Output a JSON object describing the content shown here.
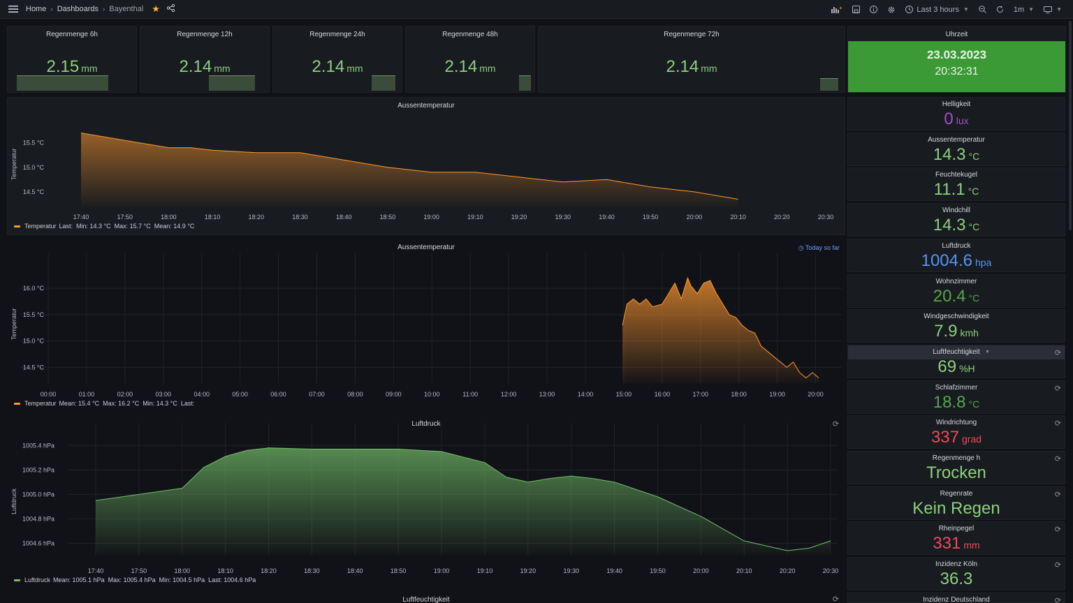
{
  "nav": {
    "home": "Home",
    "dashboards": "Dashboards",
    "current": "Bayenthal",
    "time_range": "Last 3 hours",
    "refresh_interval": "1m"
  },
  "rain_panels": [
    {
      "title": "Regenmenge 6h",
      "value": "2.15",
      "unit": "mm"
    },
    {
      "title": "Regenmenge 12h",
      "value": "2.14",
      "unit": "mm"
    },
    {
      "title": "Regenmenge 24h",
      "value": "2.14",
      "unit": "mm"
    },
    {
      "title": "Regenmenge 48h",
      "value": "2.14",
      "unit": "mm"
    },
    {
      "title": "Regenmenge 72h",
      "value": "2.14",
      "unit": "mm"
    }
  ],
  "clock": {
    "title": "Uhrzeit",
    "date": "23.03.2023",
    "time": "20:32:31"
  },
  "right_stats": [
    {
      "title": "Helligkeit",
      "value": "0",
      "unit": "lux",
      "color": "#a352cc"
    },
    {
      "title": "Aussentemperatur",
      "value": "14.3",
      "unit": "°C",
      "color": "#8cd17c"
    },
    {
      "title": "Feuchtekugel",
      "value": "11.1",
      "unit": "°C",
      "color": "#8cd17c"
    },
    {
      "title": "Windchill",
      "value": "14.3",
      "unit": "°C",
      "color": "#8cd17c"
    },
    {
      "title": "Luftdruck",
      "value": "1004.6",
      "unit": "hpa",
      "color": "#5794f2"
    },
    {
      "title": "Wohnzimmer",
      "value": "20.4",
      "unit": "°C",
      "color": "#56a64b"
    },
    {
      "title": "Windgeschwindigkeit",
      "value": "7.9",
      "unit": "kmh",
      "color": "#8cd17c"
    },
    {
      "title": "Luftfeuchtigkeit",
      "value": "69",
      "unit": "%H",
      "color": "#8cd17c"
    },
    {
      "title": "Schlafzimmer",
      "value": "18.8",
      "unit": "°C",
      "color": "#56a64b"
    },
    {
      "title": "Windrichtung",
      "value": "337",
      "unit": "grad",
      "color": "#f2495c"
    },
    {
      "title": "Regenmenge h",
      "value": "Trocken",
      "unit": "",
      "color": "#8cd17c"
    },
    {
      "title": "Regenrate",
      "value": "Kein Regen",
      "unit": "",
      "color": "#8cd17c"
    },
    {
      "title": "Rheinpegel",
      "value": "331",
      "unit": "mm",
      "color": "#f2495c"
    },
    {
      "title": "Inzidenz Köln",
      "value": "36.3",
      "unit": "",
      "color": "#8cd17c"
    },
    {
      "title": "Inzidenz Deutschland",
      "value": "",
      "unit": "",
      "color": "#8cd17c"
    }
  ],
  "chart_data": [
    {
      "type": "area",
      "title": "Aussentemperatur",
      "ylabel": "Temperatur",
      "color": "#ff9830",
      "x_ticks": [
        "17:40",
        "17:50",
        "18:00",
        "18:10",
        "18:20",
        "18:30",
        "18:40",
        "18:50",
        "19:00",
        "19:10",
        "19:20",
        "19:30",
        "19:40",
        "19:50",
        "20:00",
        "20:10",
        "20:20",
        "20:30"
      ],
      "y_ticks": [
        "15.5 °C",
        "15.0 °C",
        "14.5 °C"
      ],
      "ylim": [
        14.2,
        15.85
      ],
      "xlim": [
        "17:40",
        "20:30"
      ],
      "series": [
        {
          "name": "Temperatur",
          "x": [
            "17:40",
            "17:50",
            "18:00",
            "18:05",
            "18:10",
            "18:20",
            "18:30",
            "18:40",
            "18:50",
            "19:00",
            "19:10",
            "19:20",
            "19:30",
            "19:40",
            "19:50",
            "20:00",
            "20:10"
          ],
          "y": [
            15.7,
            15.55,
            15.4,
            15.4,
            15.35,
            15.3,
            15.3,
            15.15,
            15.0,
            14.9,
            14.9,
            14.8,
            14.7,
            14.75,
            14.6,
            14.5,
            14.35
          ]
        }
      ],
      "legend": {
        "name": "Temperatur",
        "stats": "Last:  Min: 14.3 °C  Max: 15.7 °C  Mean: 14.9 °C"
      }
    },
    {
      "type": "area",
      "title": "Aussentemperatur",
      "ylabel": "Temperatur",
      "subtitle_badge": "Today so far",
      "color": "#ff9830",
      "x_ticks": [
        "00:00",
        "01:00",
        "02:00",
        "03:00",
        "04:00",
        "05:00",
        "06:00",
        "07:00",
        "08:00",
        "09:00",
        "10:00",
        "11:00",
        "12:00",
        "13:00",
        "14:00",
        "15:00",
        "16:00",
        "17:00",
        "18:00",
        "19:00",
        "20:00"
      ],
      "y_ticks": [
        "16.0 °C",
        "15.5 °C",
        "15.0 °C",
        "14.5 °C"
      ],
      "ylim": [
        14.2,
        16.4
      ],
      "xlim": [
        "00:00",
        "20:30"
      ],
      "series": [
        {
          "name": "Temperatur",
          "x": [
            "14:58",
            "15:05",
            "15:15",
            "15:25",
            "15:35",
            "15:45",
            "16:00",
            "16:10",
            "16:20",
            "16:30",
            "16:40",
            "16:45",
            "16:55",
            "17:05",
            "17:15",
            "17:25",
            "17:35",
            "17:45",
            "17:55",
            "18:05",
            "18:15",
            "18:25",
            "18:35",
            "18:45",
            "18:55",
            "19:05",
            "19:15",
            "19:25",
            "19:35",
            "19:45",
            "19:55",
            "20:05"
          ],
          "y": [
            15.3,
            15.7,
            15.8,
            15.7,
            15.8,
            15.65,
            15.7,
            15.9,
            16.1,
            15.8,
            16.2,
            16.05,
            15.9,
            16.1,
            16.15,
            15.9,
            15.7,
            15.5,
            15.45,
            15.3,
            15.2,
            15.15,
            14.9,
            14.8,
            14.7,
            14.6,
            14.5,
            14.6,
            14.4,
            14.3,
            14.4,
            14.3
          ]
        }
      ],
      "legend": {
        "name": "Temperatur",
        "stats": "Mean: 15.4 °C  Max: 16.2 °C  Min: 14.3 °C  Last:"
      }
    },
    {
      "type": "area",
      "title": "Luftdruck",
      "ylabel": "Luftdruck",
      "color": "#73bf69",
      "x_ticks": [
        "17:40",
        "17:50",
        "18:00",
        "18:10",
        "18:20",
        "18:30",
        "18:40",
        "18:50",
        "19:00",
        "19:10",
        "19:20",
        "19:30",
        "19:40",
        "19:50",
        "20:00",
        "20:10",
        "20:20",
        "20:30"
      ],
      "y_ticks": [
        "1005.4 hPa",
        "1005.2 hPa",
        "1005.0 hPa",
        "1004.8 hPa",
        "1004.6 hPa"
      ],
      "ylim": [
        1004.5,
        1005.47
      ],
      "xlim": [
        "17:40",
        "20:30"
      ],
      "series": [
        {
          "name": "Luftdruck",
          "x": [
            "17:40",
            "17:50",
            "18:00",
            "18:05",
            "18:10",
            "18:15",
            "18:20",
            "18:30",
            "18:40",
            "18:50",
            "19:00",
            "19:10",
            "19:15",
            "19:20",
            "19:25",
            "19:30",
            "19:35",
            "19:40",
            "19:50",
            "20:00",
            "20:10",
            "20:20",
            "20:25",
            "20:30"
          ],
          "y": [
            1004.95,
            1005.0,
            1005.05,
            1005.22,
            1005.31,
            1005.36,
            1005.38,
            1005.37,
            1005.37,
            1005.37,
            1005.35,
            1005.26,
            1005.14,
            1005.1,
            1005.13,
            1005.15,
            1005.13,
            1005.1,
            1004.98,
            1004.82,
            1004.62,
            1004.54,
            1004.56,
            1004.62
          ]
        }
      ],
      "legend": {
        "name": "Luftdruck",
        "stats": "Mean: 1005.1 hPa  Max: 1005.4 hPa  Min: 1004.5 hPa  Last: 1004.6 hPa"
      }
    }
  ],
  "bottom_panel": {
    "title": "Luftfeuchtigkeit"
  }
}
